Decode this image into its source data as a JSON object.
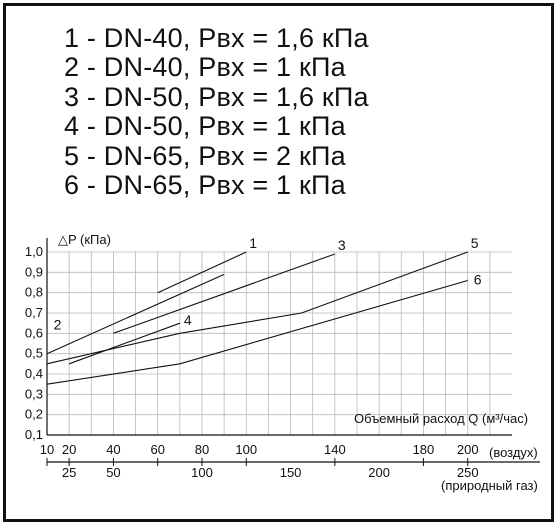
{
  "legend": [
    "1 - DN-40, Pвх = 1,6 кПа",
    "2 - DN-40, Pвх = 1 кПа",
    "3 - DN-50, Pвх = 1,6 кПа",
    "4 - DN-50, Pвх = 1 кПа",
    "5 - DN-65, Pвх = 2 кПа",
    "6 - DN-65, Pвх = 1 кПа"
  ],
  "chart_data": {
    "type": "line",
    "ylabel": "△P (кПа)",
    "xlabel": "Объемный расход Q (м³/час)",
    "y_axis": {
      "ticks": [
        "1,0",
        "0,9",
        "0,8",
        "0,7",
        "0,6",
        "0,5",
        "0,4",
        "0,3",
        "0,2",
        "0,1"
      ],
      "ylim": [
        0.1,
        1.0
      ]
    },
    "x_axis_air": {
      "label": "(воздух)",
      "ticks": [
        "10",
        "20",
        "40",
        "60",
        "80",
        "100",
        "140",
        "180",
        "200"
      ],
      "xlim": [
        10,
        220
      ]
    },
    "x_axis_gas": {
      "label": "(природный газ)",
      "ticks": [
        "25",
        "50",
        "100",
        "150",
        "200",
        "250"
      ]
    },
    "grid": true,
    "series": [
      {
        "name": "1",
        "points": [
          [
            60,
            0.8
          ],
          [
            100,
            1.0
          ]
        ]
      },
      {
        "name": "2",
        "points": [
          [
            10,
            0.5
          ],
          [
            90,
            0.89
          ]
        ]
      },
      {
        "name": "3",
        "points": [
          [
            40,
            0.6
          ],
          [
            140,
            0.99
          ]
        ]
      },
      {
        "name": "4",
        "points": [
          [
            20,
            0.45
          ],
          [
            70,
            0.65
          ]
        ]
      },
      {
        "name": "5",
        "points": [
          [
            10,
            0.45
          ],
          [
            70,
            0.6
          ],
          [
            125,
            0.7
          ],
          [
            200,
            1.0
          ]
        ]
      },
      {
        "name": "6",
        "points": [
          [
            10,
            0.35
          ],
          [
            70,
            0.45
          ],
          [
            200,
            0.86
          ]
        ]
      }
    ]
  }
}
